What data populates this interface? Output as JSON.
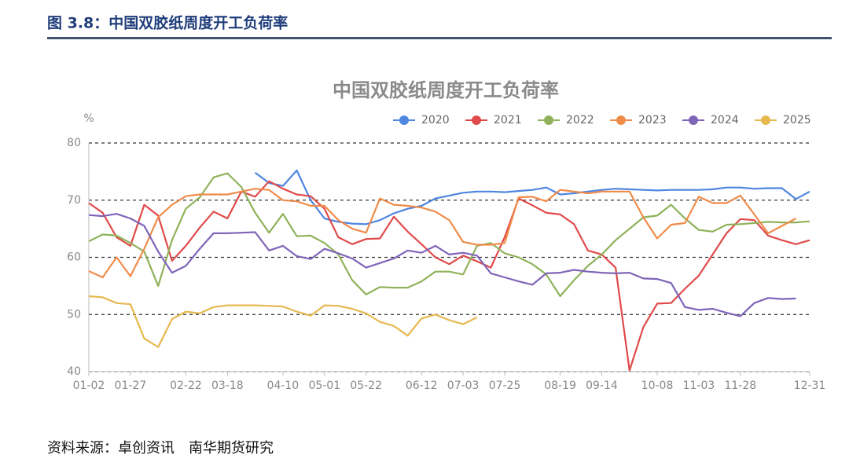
{
  "header": {
    "title": "图 3.8：中国双胶纸周度开工负荷率"
  },
  "chart_data": {
    "type": "line",
    "title": "中国双胶纸周度开工负荷率",
    "y_label": "%",
    "categories": [
      "01-02",
      null,
      null,
      "01-27",
      null,
      null,
      null,
      "02-22",
      null,
      null,
      "03-18",
      null,
      null,
      null,
      "04-10",
      null,
      null,
      "05-01",
      null,
      null,
      "05-22",
      null,
      null,
      null,
      "06-12",
      null,
      null,
      "07-03",
      null,
      null,
      "07-25",
      null,
      null,
      null,
      "08-19",
      null,
      null,
      "09-14",
      null,
      null,
      null,
      "10-08",
      null,
      null,
      "11-03",
      null,
      null,
      "11-28",
      null,
      null,
      null,
      null,
      "12-31"
    ],
    "series": [
      {
        "name": "2020",
        "color": "#4f86e0",
        "values": [
          null,
          null,
          null,
          null,
          null,
          null,
          null,
          null,
          null,
          null,
          null,
          null,
          74.8,
          73.0,
          72.5,
          75.2,
          70.0,
          66.8,
          66.2,
          65.9,
          65.8,
          66.5,
          67.7,
          68.5,
          69.0,
          70.3,
          70.8,
          71.3,
          71.5,
          71.5,
          71.4,
          71.6,
          71.8,
          72.2,
          71.0,
          71.2,
          71.5,
          71.8,
          72.0,
          71.9,
          71.8,
          71.7,
          71.8,
          71.8,
          71.8,
          71.9,
          72.2,
          72.2,
          72.0,
          72.1,
          72.1,
          70.2,
          71.5
        ]
      },
      {
        "name": "2021",
        "color": "#e04a4a",
        "values": [
          69.5,
          67.8,
          63.5,
          62.0,
          69.2,
          67.3,
          59.4,
          62.0,
          65.2,
          68.0,
          66.8,
          71.5,
          70.6,
          73.3,
          72.0,
          71.0,
          70.7,
          68.5,
          63.5,
          62.3,
          63.2,
          63.3,
          67.1,
          64.5,
          62.3,
          60.0,
          58.8,
          60.3,
          59.3,
          58.2,
          63.5,
          70.3,
          69.1,
          67.8,
          67.5,
          65.8,
          61.2,
          60.5,
          58.2,
          40.2,
          47.8,
          51.9,
          52.0,
          54.5,
          56.8,
          60.5,
          64.2,
          66.7,
          66.5,
          63.8,
          63.0,
          62.3,
          63.0
        ]
      },
      {
        "name": "2022",
        "color": "#8fb25a",
        "values": [
          62.8,
          64.0,
          63.8,
          62.5,
          61.0,
          55.0,
          63.0,
          68.5,
          70.5,
          74.0,
          74.7,
          72.3,
          67.8,
          64.3,
          67.6,
          63.7,
          63.8,
          62.5,
          60.5,
          56.0,
          53.5,
          54.8,
          54.7,
          54.7,
          55.8,
          57.5,
          57.5,
          57.0,
          62.0,
          62.5,
          60.7,
          60.0,
          58.8,
          57.0,
          53.2,
          56.0,
          58.5,
          60.5,
          63.0,
          65.0,
          67.0,
          67.3,
          69.2,
          66.8,
          64.8,
          64.5,
          65.7,
          65.8,
          66.0,
          66.2,
          66.1,
          66.1,
          66.3
        ]
      },
      {
        "name": "2023",
        "color": "#ef8c4a",
        "values": [
          57.6,
          56.5,
          60.0,
          56.7,
          61.5,
          67.0,
          69.2,
          70.7,
          71.0,
          71.0,
          71.0,
          71.5,
          72.0,
          71.8,
          70.0,
          69.8,
          69.0,
          69.0,
          66.5,
          65.0,
          64.3,
          70.3,
          69.2,
          69.0,
          68.7,
          68.0,
          66.5,
          62.7,
          62.2,
          62.2,
          62.5,
          70.5,
          70.6,
          69.8,
          71.8,
          71.5,
          71.2,
          71.5,
          71.5,
          71.5,
          67.0,
          63.3,
          65.7,
          66.0,
          70.6,
          69.5,
          69.5,
          70.8,
          67.5,
          64.2,
          65.5,
          66.8,
          null
        ]
      },
      {
        "name": "2024",
        "color": "#7f65b8",
        "values": [
          67.4,
          67.2,
          67.6,
          66.8,
          65.5,
          61.0,
          57.3,
          58.5,
          61.5,
          64.2,
          64.2,
          64.3,
          64.4,
          61.2,
          62.0,
          60.2,
          59.7,
          61.5,
          60.7,
          59.8,
          58.2,
          59.0,
          59.8,
          61.2,
          60.8,
          62.0,
          60.5,
          60.8,
          60.3,
          57.2,
          56.5,
          55.8,
          55.2,
          57.2,
          57.3,
          57.8,
          57.5,
          57.3,
          57.2,
          57.3,
          56.3,
          56.2,
          55.5,
          51.3,
          50.8,
          51.0,
          50.3,
          49.7,
          52.0,
          52.9,
          52.7,
          52.8,
          null
        ]
      },
      {
        "name": "2025",
        "color": "#e6b850",
        "values": [
          53.2,
          53.0,
          52.0,
          51.8,
          45.8,
          44.3,
          49.2,
          50.5,
          50.2,
          51.3,
          51.6,
          51.6,
          51.6,
          51.5,
          51.4,
          50.5,
          49.8,
          51.6,
          51.5,
          51.0,
          50.2,
          48.7,
          48.0,
          46.3,
          49.3,
          50.0,
          49.0,
          48.3,
          49.5,
          null,
          null,
          null,
          null,
          null,
          null,
          null,
          null,
          null,
          null,
          null,
          null,
          null,
          null,
          null,
          null,
          null,
          null,
          null,
          null,
          null,
          null,
          null,
          null
        ]
      }
    ],
    "ylim": [
      40,
      80
    ],
    "yticks": [
      40,
      50,
      60,
      70,
      80
    ],
    "grid": true,
    "legend": "top"
  },
  "source": "资料来源：卓创资讯　南华期货研究"
}
